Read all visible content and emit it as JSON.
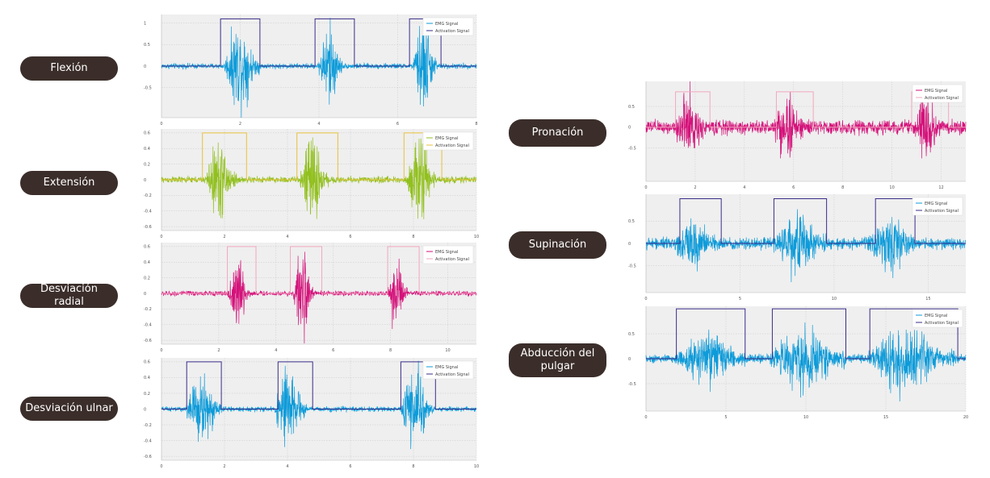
{
  "labels": {
    "flexion": "Flexión",
    "extension": "Extensión",
    "radial": "Desviación radial",
    "ulnar": "Desviación ulnar",
    "pronacion": "Pronación",
    "supinacion": "Supinación",
    "abduccion_l1": "Abducción del",
    "abduccion_l2": "pulgar"
  },
  "colors": {
    "pill_bg": "#3b2e2a",
    "emg_blue": "#0e9bd9",
    "emg_green": "#92c01f",
    "emg_magenta": "#d4127a",
    "act_navy": "#3a2d8a",
    "act_gold": "#eac13b",
    "act_pink": "#f2a7bf",
    "plot_bg": "#efefef"
  },
  "chart_data": [
    {
      "type": "line",
      "id": "flexion",
      "xlim": [
        0,
        8
      ],
      "ylim": [
        -1.2,
        1.2
      ],
      "xticks": [
        "0",
        "2",
        "4",
        "6",
        "8"
      ],
      "xtick_values": [
        0,
        2,
        4,
        6,
        8
      ],
      "yticks": [
        "1",
        "0.5",
        "0",
        "-0.5"
      ],
      "ytick_values": [
        1,
        0.5,
        0,
        -0.5
      ],
      "series": [
        {
          "name": "EMG Signal",
          "color": "#0e9bd9",
          "noise": 0.03,
          "bursts": [
            [
              1.6,
              2.5,
              0.45
            ],
            [
              4.0,
              4.6,
              0.45
            ],
            [
              6.4,
              7.0,
              0.5
            ]
          ]
        },
        {
          "name": "Activation Signal",
          "color": "#3a2d8a",
          "intervals": [
            [
              1.5,
              2.5
            ],
            [
              3.9,
              4.9
            ],
            [
              6.3,
              7.1
            ]
          ],
          "high": 1.1,
          "low": 0
        }
      ]
    },
    {
      "type": "line",
      "id": "extension",
      "xlim": [
        0,
        10
      ],
      "ylim": [
        -0.65,
        0.65
      ],
      "xticks": [
        "0",
        "2",
        "4",
        "6",
        "8",
        "10"
      ],
      "xtick_values": [
        0,
        2,
        4,
        6,
        8,
        10
      ],
      "yticks": [
        "0.6",
        "0.4",
        "0.2",
        "0",
        "-0.2",
        "-0.4",
        "-0.6"
      ],
      "ytick_values": [
        0.6,
        0.4,
        0.2,
        0,
        -0.2,
        -0.4,
        -0.6
      ],
      "series": [
        {
          "name": "EMG Signal",
          "color": "#92c01f",
          "noise": 0.02,
          "bursts": [
            [
              1.4,
              2.4,
              0.22
            ],
            [
              4.4,
              5.3,
              0.24
            ],
            [
              7.8,
              8.7,
              0.24
            ]
          ]
        },
        {
          "name": "Activation Signal",
          "color": "#eac13b",
          "intervals": [
            [
              1.3,
              2.7
            ],
            [
              4.3,
              5.6
            ],
            [
              7.7,
              8.9
            ]
          ],
          "high": 0.6,
          "low": 0
        }
      ]
    },
    {
      "type": "line",
      "id": "radial",
      "xlim": [
        0,
        11
      ],
      "ylim": [
        -0.65,
        0.65
      ],
      "xticks": [
        "0",
        "2",
        "4",
        "6",
        "8",
        "10"
      ],
      "xtick_values": [
        0,
        2,
        4,
        6,
        8,
        10
      ],
      "yticks": [
        "0.6",
        "0.4",
        "0.2",
        "0",
        "-0.2",
        "-0.4",
        "-0.6"
      ],
      "ytick_values": [
        0.6,
        0.4,
        0.2,
        0,
        -0.2,
        -0.4,
        -0.6
      ],
      "series": [
        {
          "name": "EMG Signal",
          "color": "#d4127a",
          "noise": 0.015,
          "bursts": [
            [
              2.3,
              3.1,
              0.22
            ],
            [
              4.6,
              5.3,
              0.25
            ],
            [
              7.9,
              8.6,
              0.2
            ]
          ]
        },
        {
          "name": "Activation Signal",
          "color": "#f2a7bf",
          "intervals": [
            [
              2.3,
              3.3
            ],
            [
              4.5,
              5.6
            ],
            [
              7.9,
              9.0
            ]
          ],
          "high": 0.6,
          "low": 0
        }
      ]
    },
    {
      "type": "line",
      "id": "ulnar",
      "xlim": [
        0,
        10
      ],
      "ylim": [
        -0.65,
        0.65
      ],
      "xticks": [
        "0",
        "2",
        "4",
        "6",
        "8",
        "10"
      ],
      "xtick_values": [
        0,
        2,
        4,
        6,
        8,
        10
      ],
      "yticks": [
        "0.6",
        "0.4",
        "0.2",
        "0",
        "-0.2",
        "-0.4",
        "-0.6"
      ],
      "ytick_values": [
        0.6,
        0.4,
        0.2,
        0,
        -0.2,
        -0.4,
        -0.6
      ],
      "series": [
        {
          "name": "EMG Signal",
          "color": "#0e9bd9",
          "noise": 0.015,
          "bursts": [
            [
              0.8,
              1.9,
              0.22
            ],
            [
              3.6,
              4.6,
              0.24
            ],
            [
              7.6,
              8.6,
              0.24
            ]
          ]
        },
        {
          "name": "Activation Signal",
          "color": "#3a2d8a",
          "intervals": [
            [
              0.8,
              1.9
            ],
            [
              3.7,
              4.8
            ],
            [
              7.6,
              8.7
            ]
          ],
          "high": 0.6,
          "low": 0
        }
      ]
    },
    {
      "type": "line",
      "id": "pronacion",
      "xlim": [
        0,
        13
      ],
      "ylim": [
        -1.3,
        1.1
      ],
      "xticks": [
        "0",
        "2",
        "4",
        "6",
        "8",
        "10",
        "12"
      ],
      "xtick_values": [
        0,
        2,
        4,
        6,
        8,
        10,
        12
      ],
      "yticks": [
        "0.5",
        "0",
        "-0.5"
      ],
      "ytick_values": [
        0.5,
        0,
        -0.5
      ],
      "series": [
        {
          "name": "EMG Signal",
          "color": "#d4127a",
          "noise": 0.08,
          "bursts": [
            [
              1.2,
              2.4,
              0.35
            ],
            [
              5.2,
              6.4,
              0.35
            ],
            [
              10.9,
              12.0,
              0.35
            ]
          ]
        },
        {
          "name": "Activation Signal",
          "color": "#f2a7bf",
          "intervals": [
            [
              1.2,
              2.6
            ],
            [
              5.3,
              6.8
            ],
            [
              10.8,
              12.3
            ]
          ],
          "high": 0.85,
          "low": 0
        }
      ]
    },
    {
      "type": "line",
      "id": "supinacion",
      "xlim": [
        0,
        17
      ],
      "ylim": [
        -1.1,
        1.1
      ],
      "xticks": [
        "0",
        "5",
        "10",
        "15"
      ],
      "xtick_values": [
        0,
        5,
        10,
        15
      ],
      "yticks": [
        "0.5",
        "0",
        "-0.5"
      ],
      "ytick_values": [
        0.5,
        0,
        -0.5
      ],
      "series": [
        {
          "name": "EMG Signal",
          "color": "#0e9bd9",
          "noise": 0.06,
          "bursts": [
            [
              1.5,
              3.8,
              0.22
            ],
            [
              6.8,
              9.6,
              0.28
            ],
            [
              11.8,
              14.3,
              0.26
            ]
          ]
        },
        {
          "name": "Activation Signal",
          "color": "#3a2d8a",
          "intervals": [
            [
              1.8,
              4.0
            ],
            [
              6.8,
              9.6
            ],
            [
              12.2,
              14.3
            ]
          ],
          "high": 1.0,
          "low": 0
        }
      ]
    },
    {
      "type": "line",
      "id": "abduccion",
      "xlim": [
        0,
        20
      ],
      "ylim": [
        -1.05,
        1.05
      ],
      "xticks": [
        "0",
        "5",
        "10",
        "15",
        "20"
      ],
      "xtick_values": [
        0,
        5,
        10,
        15,
        20
      ],
      "yticks": [
        "0.5",
        "0",
        "-0.5"
      ],
      "ytick_values": [
        0.5,
        0,
        -0.5
      ],
      "series": [
        {
          "name": "EMG Signal",
          "color": "#0e9bd9",
          "noise": 0.04,
          "bursts": [
            [
              1.9,
              6.3,
              0.22
            ],
            [
              7.7,
              12.5,
              0.26
            ],
            [
              13.9,
              19.3,
              0.28
            ]
          ]
        },
        {
          "name": "Activation Signal",
          "color": "#3a2d8a",
          "intervals": [
            [
              1.9,
              6.2
            ],
            [
              7.9,
              12.5
            ],
            [
              14.0,
              19.5
            ]
          ],
          "high": 1.0,
          "low": 0
        }
      ]
    }
  ]
}
